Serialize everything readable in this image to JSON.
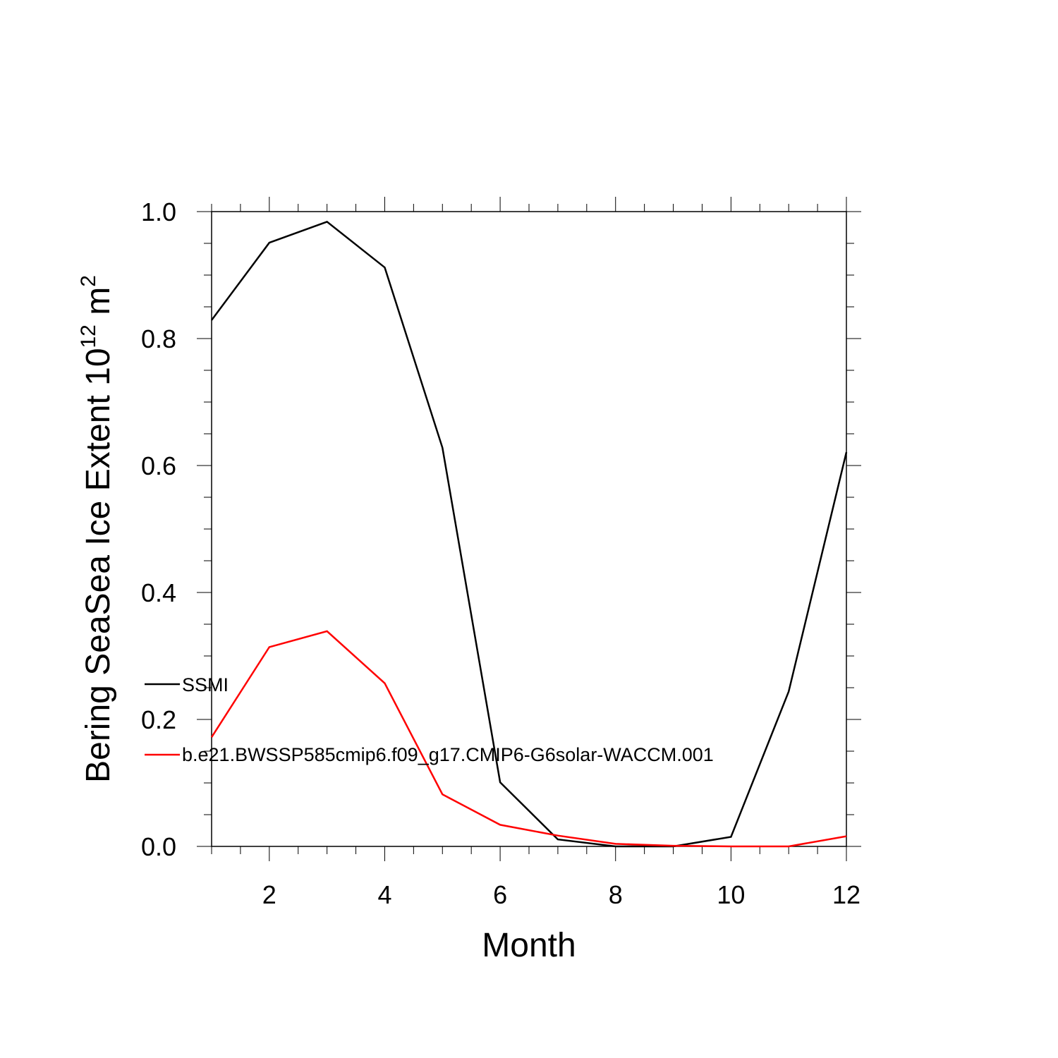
{
  "chart_data": {
    "type": "line",
    "title": "",
    "xlabel": "Month",
    "ylabel": "Bering SeaSea Ice Extent 10",
    "ylabel_exponent": "12",
    "ylabel_unit": " m",
    "ylabel_unit_exponent": "2",
    "xlim": [
      1,
      12
    ],
    "ylim": [
      0,
      1
    ],
    "x_ticks": [
      2,
      4,
      6,
      8,
      10,
      12
    ],
    "y_ticks": [
      0.0,
      0.2,
      0.4,
      0.6,
      0.8,
      1.0
    ],
    "y_tick_labels": [
      "0.0",
      "0.2",
      "0.4",
      "0.6",
      "0.8",
      "1.0"
    ],
    "x": [
      1,
      2,
      3,
      4,
      5,
      6,
      7,
      8,
      9,
      10,
      11,
      12
    ],
    "series": [
      {
        "name": "SSMI",
        "color": "#000000",
        "values": [
          0.829,
          0.951,
          0.984,
          0.912,
          0.628,
          0.101,
          0.011,
          0.0,
          0.0,
          0.015,
          0.244,
          0.621
        ]
      },
      {
        "name": "b.e21.BWSSP585cmip6.f09_g17.CMIP6-G6solar-WACCM.001",
        "color": "#ff0000",
        "values": [
          0.172,
          0.314,
          0.339,
          0.257,
          0.082,
          0.034,
          0.017,
          0.004,
          0.001,
          0.0,
          0.0,
          0.016
        ]
      }
    ],
    "legend_placement": "lower-left inside"
  }
}
